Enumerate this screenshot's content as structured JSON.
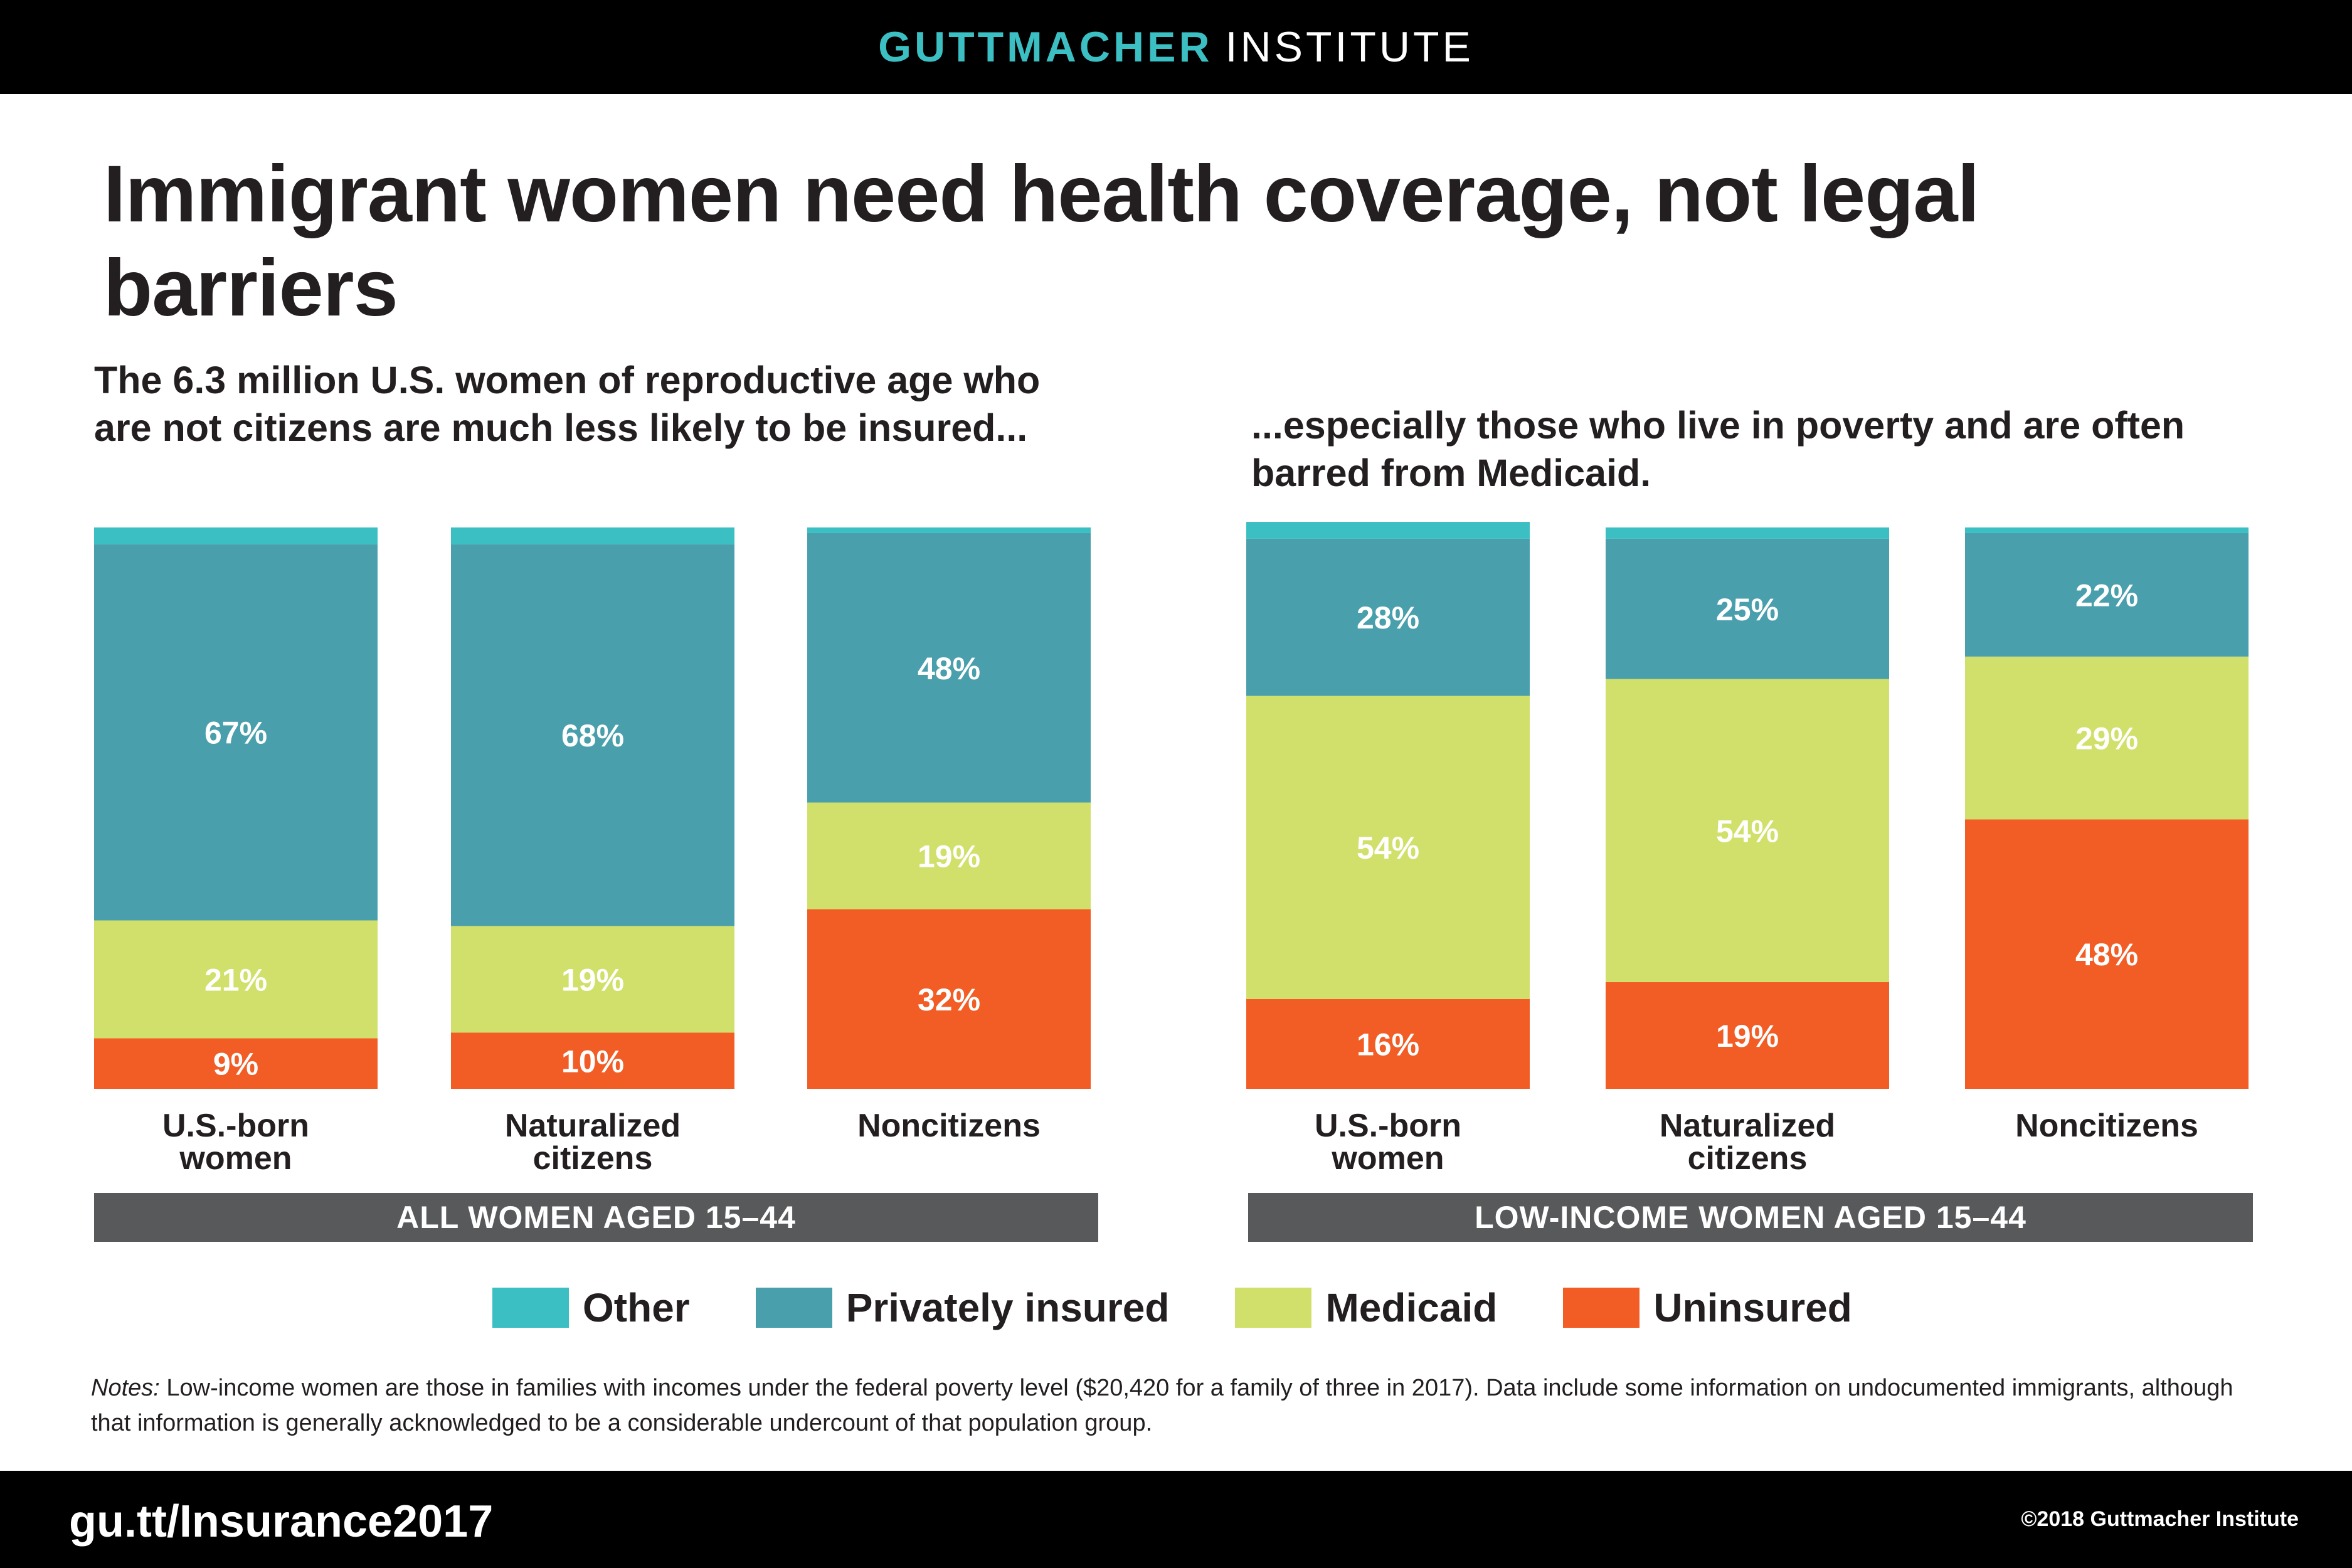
{
  "header": {
    "brand_primary": "GUTTMACHER",
    "brand_secondary": "INSTITUTE"
  },
  "headline": "Immigrant women need health coverage, not legal barriers",
  "subtitles": {
    "left": "The 6.3 million U.S. women of reproductive age who are not citizens are much less likely to be insured...",
    "right": "...especially those who live in poverty and are often barred from Medicaid."
  },
  "colors": {
    "Other": "#3bbfc3",
    "Privately insured": "#4a9fad",
    "Medicaid": "#d1e06a",
    "Uninsured": "#f15d25",
    "panel_label_bg": "#58595b"
  },
  "chart_data": [
    {
      "type": "bar",
      "stacked": true,
      "panel_label": "ALL WOMEN AGED 15–44",
      "categories": [
        "U.S.-born women",
        "Naturalized citizens",
        "Noncitizens"
      ],
      "series": [
        {
          "name": "Uninsured",
          "values": [
            9,
            10,
            32
          ]
        },
        {
          "name": "Medicaid",
          "values": [
            21,
            19,
            19
          ]
        },
        {
          "name": "Privately insured",
          "values": [
            67,
            68,
            48
          ]
        },
        {
          "name": "Other",
          "values": [
            3,
            3,
            1
          ]
        }
      ],
      "labels": [
        {
          "Uninsured": "9%",
          "Medicaid": "21%",
          "Privately insured": "67%"
        },
        {
          "Uninsured": "10%",
          "Medicaid": "19%",
          "Privately insured": "68%"
        },
        {
          "Uninsured": "32%",
          "Medicaid": "19%",
          "Privately insured": "48%"
        }
      ],
      "ylim": [
        0,
        100
      ]
    },
    {
      "type": "bar",
      "stacked": true,
      "panel_label": "LOW-INCOME WOMEN AGED 15–44",
      "categories": [
        "U.S.-born women",
        "Naturalized citizens",
        "Noncitizens"
      ],
      "series": [
        {
          "name": "Uninsured",
          "values": [
            16,
            19,
            48
          ]
        },
        {
          "name": "Medicaid",
          "values": [
            54,
            54,
            29
          ]
        },
        {
          "name": "Privately insured",
          "values": [
            28,
            25,
            22
          ]
        },
        {
          "name": "Other",
          "values": [
            3,
            2,
            1
          ]
        }
      ],
      "labels": [
        {
          "Uninsured": "16%",
          "Medicaid": "54%",
          "Privately insured": "28%"
        },
        {
          "Uninsured": "19%",
          "Medicaid": "54%",
          "Privately insured": "25%"
        },
        {
          "Uninsured": "48%",
          "Medicaid": "29%",
          "Privately insured": "22%"
        }
      ],
      "ylim": [
        0,
        100
      ]
    }
  ],
  "legend": [
    "Other",
    "Privately insured",
    "Medicaid",
    "Uninsured"
  ],
  "notes": {
    "lead": "Notes:",
    "text": " Low-income women are those in families with incomes under the federal poverty level ($20,420 for a family of three in 2017). Data include some information on undocumented immigrants, although that information is generally acknowledged to be a considerable undercount of that population group."
  },
  "footer": {
    "url": "gu.tt/Insurance2017",
    "copyright": "©2018 Guttmacher Institute"
  }
}
